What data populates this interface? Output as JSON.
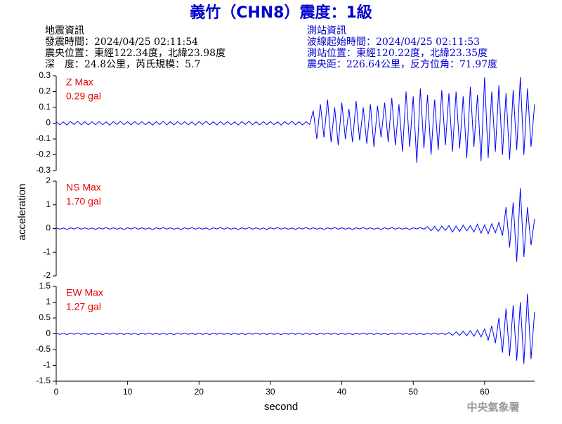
{
  "header": {
    "title": "義竹（CHN8）震度：1級",
    "left": [
      "地震資訊",
      "發震時間：2024/04/25 02:11:54",
      "震央位置：東經122.34度，北緯23.98度",
      "深　度：24.8公里，芮氏規模：5.7"
    ],
    "right": [
      "測站資訊",
      "波線起始時間：2024/04/25 02:11:53",
      "測站位置：東經120.22度，北緯23.35度",
      "震央距：226.64公里，反方位角：71.97度"
    ]
  },
  "y_axis_label": "acceleration",
  "x_axis_label": "second",
  "watermark": "中央氣象署",
  "chart_data": [
    {
      "type": "line",
      "label": "Z Max",
      "max_label": "0.29 gal",
      "color": "#0000ff",
      "label_color": "#ee0000",
      "xlim": [
        0,
        67
      ],
      "ylim": [
        -0.3,
        0.3
      ],
      "yticks": [
        0.3,
        0.2,
        0.1,
        0,
        -0.1,
        -0.2,
        -0.3
      ],
      "x": [
        0,
        0.5,
        1,
        1.5,
        2,
        2.5,
        3,
        3.5,
        4,
        4.5,
        5,
        5.5,
        6,
        6.5,
        7,
        7.5,
        8,
        8.5,
        9,
        9.5,
        10,
        10.5,
        11,
        11.5,
        12,
        12.5,
        13,
        13.5,
        14,
        14.5,
        15,
        15.5,
        16,
        16.5,
        17,
        17.5,
        18,
        18.5,
        19,
        19.5,
        20,
        20.5,
        21,
        21.5,
        22,
        22.5,
        23,
        23.5,
        24,
        24.5,
        25,
        25.5,
        26,
        26.5,
        27,
        27.5,
        28,
        28.5,
        29,
        29.5,
        30,
        30.5,
        31,
        31.5,
        32,
        32.5,
        33,
        33.5,
        34,
        34.5,
        35,
        35.5,
        36,
        36.5,
        37,
        37.5,
        38,
        38.5,
        39,
        39.5,
        40,
        40.5,
        41,
        41.5,
        42,
        42.5,
        43,
        43.5,
        44,
        44.5,
        45,
        45.5,
        46,
        46.5,
        47,
        47.5,
        48,
        48.5,
        49,
        49.5,
        50,
        50.5,
        51,
        51.5,
        52,
        52.5,
        53,
        53.5,
        54,
        54.5,
        55,
        55.5,
        56,
        56.5,
        57,
        57.5,
        58,
        58.5,
        59,
        59.5,
        60,
        60.5,
        61,
        61.5,
        62,
        62.5,
        63,
        63.5,
        64,
        64.5,
        65,
        65.5,
        66,
        66.5,
        67
      ],
      "values": [
        0.01,
        -0.01,
        0.008,
        -0.012,
        0.01,
        -0.008,
        0.012,
        -0.01,
        0.009,
        -0.011,
        0.01,
        -0.009,
        0.01,
        -0.01,
        0.008,
        -0.012,
        0.01,
        -0.008,
        0.012,
        -0.01,
        0.009,
        -0.011,
        0.01,
        -0.009,
        0.01,
        -0.01,
        0.008,
        -0.012,
        0.01,
        -0.008,
        0.012,
        -0.01,
        0.009,
        -0.011,
        0.01,
        -0.009,
        0.01,
        -0.01,
        0.008,
        -0.012,
        0.01,
        -0.008,
        0.012,
        -0.01,
        0.009,
        -0.011,
        0.01,
        -0.009,
        0.01,
        -0.01,
        0.008,
        -0.012,
        0.01,
        -0.008,
        0.012,
        -0.01,
        0.009,
        -0.011,
        0.01,
        -0.009,
        0.01,
        -0.01,
        0.008,
        -0.012,
        0.01,
        -0.008,
        0.012,
        -0.01,
        0.009,
        -0.011,
        0.01,
        -0.009,
        0.08,
        -0.1,
        0.12,
        -0.09,
        0.15,
        -0.12,
        0.1,
        -0.14,
        0.13,
        -0.1,
        0.09,
        -0.12,
        0.14,
        -0.11,
        0.1,
        -0.13,
        0.12,
        -0.15,
        0.11,
        -0.09,
        0.13,
        -0.12,
        0.16,
        -0.14,
        0.12,
        -0.18,
        0.2,
        -0.15,
        0.17,
        -0.25,
        0.22,
        -0.16,
        0.18,
        -0.2,
        0.15,
        -0.17,
        0.21,
        -0.14,
        0.19,
        -0.18,
        0.2,
        -0.16,
        0.17,
        -0.22,
        0.23,
        -0.15,
        0.18,
        -0.24,
        0.29,
        -0.22,
        0.2,
        -0.18,
        0.24,
        -0.2,
        0.19,
        -0.23,
        0.21,
        -0.17,
        0.29,
        -0.2,
        0.22,
        -0.15,
        0.12
      ]
    },
    {
      "type": "line",
      "label": "NS Max",
      "max_label": "1.70 gal",
      "color": "#0000ff",
      "label_color": "#ee0000",
      "xlim": [
        0,
        67
      ],
      "ylim": [
        -2,
        2
      ],
      "yticks": [
        2,
        1,
        0,
        -1,
        -2
      ],
      "x": [
        0,
        0.5,
        1,
        1.5,
        2,
        2.5,
        3,
        3.5,
        4,
        4.5,
        5,
        5.5,
        6,
        6.5,
        7,
        7.5,
        8,
        8.5,
        9,
        9.5,
        10,
        10.5,
        11,
        11.5,
        12,
        12.5,
        13,
        13.5,
        14,
        14.5,
        15,
        15.5,
        16,
        16.5,
        17,
        17.5,
        18,
        18.5,
        19,
        19.5,
        20,
        20.5,
        21,
        21.5,
        22,
        22.5,
        23,
        23.5,
        24,
        24.5,
        25,
        25.5,
        26,
        26.5,
        27,
        27.5,
        28,
        28.5,
        29,
        29.5,
        30,
        30.5,
        31,
        31.5,
        32,
        32.5,
        33,
        33.5,
        34,
        34.5,
        35,
        35.5,
        36,
        36.5,
        37,
        37.5,
        38,
        38.5,
        39,
        39.5,
        40,
        40.5,
        41,
        41.5,
        42,
        42.5,
        43,
        43.5,
        44,
        44.5,
        45,
        45.5,
        46,
        46.5,
        47,
        47.5,
        48,
        48.5,
        49,
        49.5,
        50,
        50.5,
        51,
        51.5,
        52,
        52.5,
        53,
        53.5,
        54,
        54.5,
        55,
        55.5,
        56,
        56.5,
        57,
        57.5,
        58,
        58.5,
        59,
        59.5,
        60,
        60.5,
        61,
        61.5,
        62,
        62.5,
        63,
        63.5,
        64,
        64.5,
        65,
        65.5,
        66,
        66.5,
        67
      ],
      "values": [
        0.03,
        -0.03,
        0.02,
        -0.04,
        0.03,
        -0.02,
        0.04,
        -0.03,
        0.03,
        -0.03,
        0.02,
        -0.04,
        0.03,
        -0.02,
        0.04,
        -0.03,
        0.03,
        -0.03,
        0.02,
        -0.04,
        0.03,
        -0.02,
        0.04,
        -0.03,
        0.03,
        -0.03,
        0.02,
        -0.04,
        0.03,
        -0.02,
        0.04,
        -0.03,
        0.03,
        -0.03,
        0.02,
        -0.04,
        0.03,
        -0.02,
        0.04,
        -0.03,
        0.03,
        -0.03,
        0.02,
        -0.04,
        0.03,
        -0.02,
        0.04,
        -0.03,
        0.03,
        -0.03,
        0.02,
        -0.04,
        0.03,
        -0.02,
        0.04,
        -0.03,
        0.03,
        -0.03,
        0.02,
        -0.04,
        0.03,
        -0.02,
        0.04,
        -0.03,
        0.03,
        -0.03,
        0.02,
        -0.04,
        0.03,
        -0.02,
        0.04,
        -0.03,
        0.03,
        -0.03,
        0.02,
        -0.04,
        0.03,
        -0.02,
        0.04,
        -0.03,
        0.03,
        -0.03,
        0.02,
        -0.04,
        0.03,
        -0.02,
        0.04,
        -0.03,
        0.03,
        -0.03,
        0.02,
        -0.04,
        0.03,
        -0.02,
        0.04,
        -0.03,
        0.03,
        -0.03,
        0.02,
        -0.04,
        0.03,
        -0.02,
        0.04,
        -0.03,
        0.08,
        -0.1,
        0.09,
        -0.12,
        0.1,
        -0.08,
        0.12,
        -0.15,
        0.1,
        -0.12,
        0.14,
        -0.1,
        0.12,
        -0.15,
        0.18,
        -0.2,
        0.15,
        -0.22,
        0.2,
        -0.18,
        0.25,
        -0.3,
        0.9,
        -0.8,
        1.1,
        -1.4,
        1.7,
        -1.2,
        0.9,
        -0.7,
        0.4
      ]
    },
    {
      "type": "line",
      "label": "EW Max",
      "max_label": "1.27 gal",
      "color": "#0000ff",
      "label_color": "#ee0000",
      "xlim": [
        0,
        67
      ],
      "xticks": [
        0,
        10,
        20,
        30,
        40,
        50,
        60
      ],
      "ylim": [
        -1.5,
        1.5
      ],
      "yticks": [
        1.5,
        1,
        0.5,
        0,
        -0.5,
        -1,
        -1.5
      ],
      "x": [
        0,
        0.5,
        1,
        1.5,
        2,
        2.5,
        3,
        3.5,
        4,
        4.5,
        5,
        5.5,
        6,
        6.5,
        7,
        7.5,
        8,
        8.5,
        9,
        9.5,
        10,
        10.5,
        11,
        11.5,
        12,
        12.5,
        13,
        13.5,
        14,
        14.5,
        15,
        15.5,
        16,
        16.5,
        17,
        17.5,
        18,
        18.5,
        19,
        19.5,
        20,
        20.5,
        21,
        21.5,
        22,
        22.5,
        23,
        23.5,
        24,
        24.5,
        25,
        25.5,
        26,
        26.5,
        27,
        27.5,
        28,
        28.5,
        29,
        29.5,
        30,
        30.5,
        31,
        31.5,
        32,
        32.5,
        33,
        33.5,
        34,
        34.5,
        35,
        35.5,
        36,
        36.5,
        37,
        37.5,
        38,
        38.5,
        39,
        39.5,
        40,
        40.5,
        41,
        41.5,
        42,
        42.5,
        43,
        43.5,
        44,
        44.5,
        45,
        45.5,
        46,
        46.5,
        47,
        47.5,
        48,
        48.5,
        49,
        49.5,
        50,
        50.5,
        51,
        51.5,
        52,
        52.5,
        53,
        53.5,
        54,
        54.5,
        55,
        55.5,
        56,
        56.5,
        57,
        57.5,
        58,
        58.5,
        59,
        59.5,
        60,
        60.5,
        61,
        61.5,
        62,
        62.5,
        63,
        63.5,
        64,
        64.5,
        65,
        65.5,
        66,
        66.5,
        67
      ],
      "values": [
        0.02,
        -0.02,
        0.015,
        -0.025,
        0.02,
        -0.015,
        0.025,
        -0.02,
        0.018,
        -0.022,
        0.02,
        -0.02,
        0.015,
        -0.025,
        0.02,
        -0.015,
        0.025,
        -0.02,
        0.018,
        -0.022,
        0.02,
        -0.02,
        0.015,
        -0.025,
        0.02,
        -0.015,
        0.025,
        -0.02,
        0.018,
        -0.022,
        0.02,
        -0.02,
        0.015,
        -0.025,
        0.02,
        -0.015,
        0.025,
        -0.02,
        0.018,
        -0.022,
        0.02,
        -0.02,
        0.015,
        -0.025,
        0.02,
        -0.015,
        0.025,
        -0.02,
        0.018,
        -0.022,
        0.02,
        -0.02,
        0.015,
        -0.025,
        0.02,
        -0.015,
        0.025,
        -0.02,
        0.018,
        -0.022,
        0.02,
        -0.02,
        0.015,
        -0.025,
        0.02,
        -0.015,
        0.025,
        -0.02,
        0.018,
        -0.022,
        0.02,
        -0.02,
        0.015,
        -0.025,
        0.02,
        -0.015,
        0.025,
        -0.02,
        0.018,
        -0.022,
        0.02,
        -0.02,
        0.015,
        -0.025,
        0.02,
        -0.015,
        0.025,
        -0.02,
        0.018,
        -0.022,
        0.02,
        -0.02,
        0.015,
        -0.025,
        0.02,
        -0.015,
        0.025,
        -0.02,
        0.018,
        -0.022,
        0.02,
        -0.02,
        0.015,
        -0.025,
        0.02,
        -0.015,
        0.025,
        -0.02,
        0.018,
        -0.022,
        0.04,
        -0.05,
        0.06,
        -0.05,
        0.08,
        -0.06,
        0.1,
        -0.08,
        0.12,
        -0.1,
        0.15,
        -0.2,
        0.25,
        -0.3,
        0.5,
        -0.6,
        0.8,
        -0.7,
        0.9,
        -0.85,
        1.0,
        -0.95,
        1.27,
        -0.8,
        0.7
      ]
    }
  ]
}
